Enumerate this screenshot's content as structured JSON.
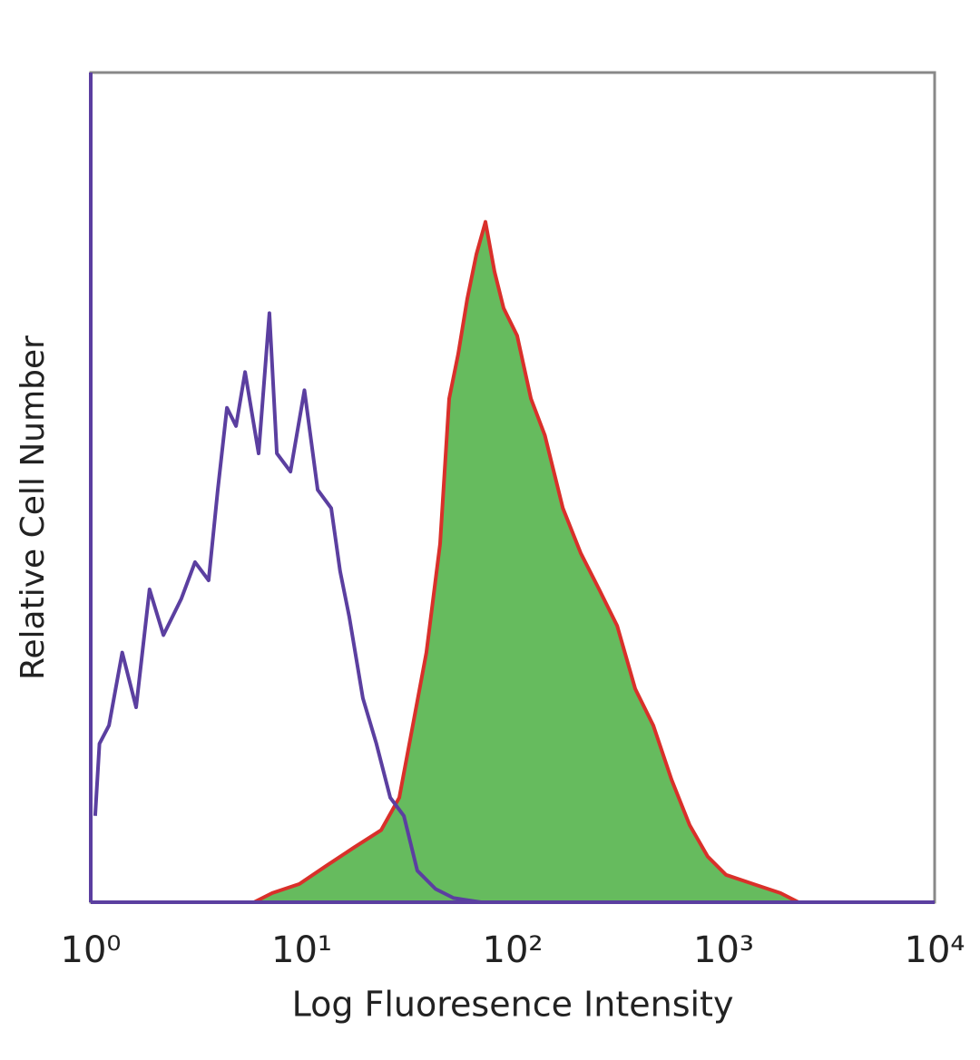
{
  "chart_data": {
    "type": "line",
    "xlabel": "Log Fluoresence Intensity",
    "ylabel": "Relative Cell Number",
    "xscale": "log",
    "xlim": [
      1,
      10000
    ],
    "xticks": [
      {
        "value": 1,
        "label": "10⁰"
      },
      {
        "value": 10,
        "label": "10¹"
      },
      {
        "value": 100,
        "label": "10²"
      },
      {
        "value": 1000,
        "label": "10³"
      },
      {
        "value": 10000,
        "label": "10⁴"
      }
    ],
    "ylim": [
      0,
      100
    ],
    "grid": false,
    "series": [
      {
        "color": "#5b3fa0",
        "x": [
          1.05,
          1.1,
          1.22,
          1.41,
          1.64,
          1.9,
          2.21,
          2.69,
          3.12,
          3.62,
          4.0,
          4.42,
          4.88,
          5.39,
          6.25,
          7.03,
          7.62,
          8.84,
          10.3,
          11.9,
          13.8,
          15.2,
          16.8,
          19.5,
          22.6,
          26.3,
          30.5,
          35.3,
          43.1,
          52.5,
          70.7
        ],
        "values": [
          10.4,
          19.1,
          21.3,
          30.1,
          23.5,
          37.7,
          32.2,
          36.6,
          41.0,
          38.8,
          49.7,
          59.6,
          57.4,
          63.9,
          54.1,
          71.0,
          54.1,
          51.9,
          61.7,
          49.7,
          47.5,
          39.9,
          34.4,
          24.6,
          19.1,
          12.6,
          10.4,
          3.8,
          1.6,
          0.5,
          0
        ]
      },
      {
        "color": "#d9302a",
        "fill_color": "#66bb5e",
        "x": [
          5.94,
          7.25,
          9.75,
          13.1,
          17.7,
          23.8,
          29.0,
          33.6,
          39.0,
          45.3,
          50.0,
          55.2,
          60.9,
          67.3,
          74.3,
          82.0,
          90.6,
          105,
          122,
          142,
          173,
          210,
          257,
          313,
          381,
          464,
          566,
          690,
          841,
          1026,
          1380,
          1858,
          2264
        ],
        "values": [
          0,
          1.1,
          2.2,
          4.4,
          6.6,
          8.7,
          12.6,
          21.3,
          30.1,
          43.2,
          60.7,
          66.1,
          72.7,
          78.1,
          82.0,
          76.0,
          71.6,
          68.3,
          60.7,
          56.3,
          47.5,
          42.1,
          37.7,
          33.3,
          25.7,
          21.3,
          14.8,
          9.3,
          5.5,
          3.3,
          2.2,
          1.1,
          0
        ]
      }
    ]
  }
}
